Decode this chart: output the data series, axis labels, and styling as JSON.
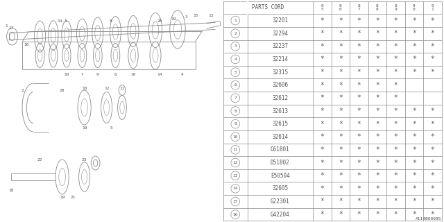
{
  "title": "A114B00095",
  "parts_table": {
    "year_headers": [
      "8\n5",
      "8\n6",
      "8\n7",
      "8\n8",
      "8\n9",
      "9\n0",
      "9\n1"
    ],
    "rows": [
      {
        "num": 1,
        "part": "32201",
        "marks": [
          1,
          1,
          1,
          1,
          1,
          1,
          1
        ]
      },
      {
        "num": 2,
        "part": "32294",
        "marks": [
          1,
          1,
          1,
          1,
          1,
          1,
          1
        ]
      },
      {
        "num": 3,
        "part": "32237",
        "marks": [
          1,
          1,
          1,
          1,
          1,
          1,
          1
        ]
      },
      {
        "num": 4,
        "part": "32214",
        "marks": [
          1,
          1,
          1,
          1,
          1,
          1,
          1
        ]
      },
      {
        "num": 5,
        "part": "32315",
        "marks": [
          1,
          1,
          1,
          1,
          1,
          1,
          1
        ]
      },
      {
        "num": 6,
        "part": "32606",
        "marks": [
          1,
          1,
          1,
          1,
          1,
          0,
          0
        ]
      },
      {
        "num": 7,
        "part": "32612",
        "marks": [
          1,
          1,
          1,
          1,
          1,
          0,
          0
        ]
      },
      {
        "num": 8,
        "part": "32613",
        "marks": [
          1,
          1,
          1,
          1,
          1,
          1,
          1
        ]
      },
      {
        "num": 9,
        "part": "32615",
        "marks": [
          1,
          1,
          1,
          1,
          1,
          1,
          1
        ]
      },
      {
        "num": 10,
        "part": "32614",
        "marks": [
          1,
          1,
          1,
          1,
          1,
          1,
          1
        ]
      },
      {
        "num": 11,
        "part": "C61801",
        "marks": [
          1,
          1,
          1,
          1,
          1,
          1,
          1
        ]
      },
      {
        "num": 12,
        "part": "D51802",
        "marks": [
          1,
          1,
          1,
          1,
          1,
          1,
          1
        ]
      },
      {
        "num": 13,
        "part": "E50504",
        "marks": [
          1,
          1,
          1,
          1,
          1,
          1,
          1
        ]
      },
      {
        "num": 14,
        "part": "32605",
        "marks": [
          1,
          1,
          1,
          1,
          1,
          1,
          1
        ]
      },
      {
        "num": 15,
        "part": "G22301",
        "marks": [
          1,
          1,
          1,
          1,
          1,
          1,
          1
        ]
      },
      {
        "num": 16,
        "part": "G42204",
        "marks": [
          1,
          1,
          1,
          1,
          1,
          1,
          1
        ]
      }
    ]
  },
  "bg_color": "#ffffff",
  "line_color": "#888888",
  "text_color": "#555555"
}
